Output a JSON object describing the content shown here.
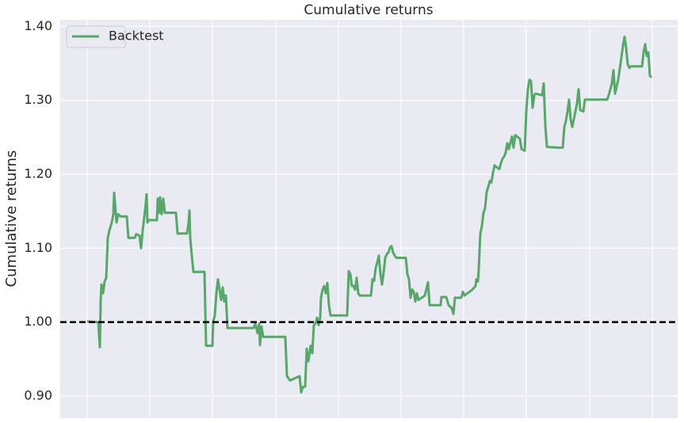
{
  "chart_data": {
    "type": "line",
    "title": "Cumulative returns",
    "y_label": "Cumulative returns",
    "xlim": [
      -34,
      745
    ],
    "xticks": [
      0,
      79,
      158,
      238,
      317,
      396,
      475,
      554,
      634,
      713
    ],
    "ylim": [
      0.87,
      1.409
    ],
    "yticks": [
      {
        "value": 0.9,
        "label": "0.90"
      },
      {
        "value": 1.0,
        "label": "1.00"
      },
      {
        "value": 1.1,
        "label": "1.10"
      },
      {
        "value": 1.2,
        "label": "1.20"
      },
      {
        "value": 1.3,
        "label": "1.30"
      },
      {
        "value": 1.4,
        "label": "1.40"
      }
    ],
    "grid": true,
    "legend": "upper left",
    "reference_line": 1.0,
    "x": [
      0,
      14,
      16,
      17,
      18,
      20,
      22,
      24,
      26,
      28,
      31,
      33,
      34,
      35,
      37,
      39,
      42,
      50,
      52,
      60,
      62,
      66,
      68,
      70,
      73,
      75,
      76,
      78,
      88,
      89,
      91,
      92,
      94,
      96,
      98,
      112,
      114,
      126,
      128,
      129,
      130,
      132,
      134,
      148,
      150,
      158,
      159,
      161,
      163,
      165,
      167,
      169,
      171,
      173,
      175,
      177,
      210,
      212,
      215,
      217,
      218,
      220,
      222,
      250,
      252,
      256,
      268,
      270,
      272,
      275,
      277,
      279,
      282,
      284,
      286,
      288,
      290,
      292,
      294,
      295,
      297,
      299,
      301,
      303,
      305,
      307,
      328,
      330,
      332,
      334,
      336,
      338,
      340,
      342,
      344,
      358,
      360,
      362,
      364,
      366,
      368,
      370,
      372,
      374,
      376,
      378,
      380,
      382,
      384,
      386,
      388,
      390,
      402,
      404,
      406,
      408,
      410,
      412,
      414,
      416,
      418,
      426,
      430,
      432,
      446,
      447,
      453,
      456,
      460,
      462,
      464,
      472,
      474,
      476,
      486,
      490,
      491,
      493,
      494,
      496,
      498,
      500,
      502,
      504,
      506,
      508,
      510,
      512,
      514,
      516,
      520,
      522,
      524,
      526,
      528,
      530,
      532,
      536,
      538,
      540,
      546,
      548,
      552,
      554,
      556,
      558,
      560,
      562,
      564,
      566,
      574,
      576,
      578,
      580,
      594,
      600,
      602,
      604,
      606,
      608,
      610,
      612,
      616,
      618,
      620,
      622,
      626,
      628,
      656,
      658,
      662,
      664,
      666,
      670,
      674,
      676,
      678,
      680,
      682,
      684,
      686,
      700,
      702,
      704,
      706,
      708,
      710,
      712
    ],
    "series": [
      {
        "name": "Backtest",
        "color": "#55a868",
        "values": [
          1.001,
          1.0,
          0.966,
          1.028,
          1.051,
          1.039,
          1.055,
          1.06,
          1.114,
          1.124,
          1.135,
          1.146,
          1.175,
          1.162,
          1.135,
          1.146,
          1.143,
          1.143,
          1.114,
          1.114,
          1.119,
          1.117,
          1.1,
          1.124,
          1.151,
          1.173,
          1.135,
          1.138,
          1.138,
          1.167,
          1.148,
          1.169,
          1.146,
          1.167,
          1.148,
          1.148,
          1.12,
          1.12,
          1.135,
          1.151,
          1.114,
          1.09,
          1.068,
          1.068,
          0.968,
          0.968,
          1.001,
          1.009,
          1.039,
          1.058,
          1.044,
          1.03,
          1.047,
          1.028,
          1.036,
          0.992,
          0.992,
          0.998,
          0.985,
          0.998,
          0.969,
          0.994,
          0.98,
          0.98,
          0.927,
          0.921,
          0.927,
          0.905,
          0.912,
          0.913,
          0.964,
          0.947,
          0.968,
          0.958,
          0.996,
          0.998,
          1.006,
          0.996,
          1.006,
          1.033,
          1.044,
          1.049,
          1.039,
          1.053,
          1.023,
          1.009,
          1.009,
          1.069,
          1.065,
          1.049,
          1.049,
          1.044,
          1.06,
          1.039,
          1.036,
          1.036,
          1.058,
          1.056,
          1.073,
          1.081,
          1.09,
          1.065,
          1.051,
          1.067,
          1.087,
          1.092,
          1.094,
          1.101,
          1.103,
          1.094,
          1.09,
          1.087,
          1.087,
          1.065,
          1.058,
          1.033,
          1.044,
          1.041,
          1.028,
          1.039,
          1.03,
          1.036,
          1.054,
          1.023,
          1.023,
          1.034,
          1.034,
          1.023,
          1.019,
          1.011,
          1.033,
          1.033,
          1.041,
          1.036,
          1.044,
          1.049,
          1.058,
          1.055,
          1.071,
          1.119,
          1.13,
          1.148,
          1.154,
          1.176,
          1.183,
          1.191,
          1.189,
          1.202,
          1.212,
          1.21,
          1.207,
          1.215,
          1.221,
          1.224,
          1.229,
          1.242,
          1.234,
          1.251,
          1.236,
          1.253,
          1.248,
          1.234,
          1.232,
          1.285,
          1.315,
          1.328,
          1.326,
          1.29,
          1.307,
          1.309,
          1.307,
          1.323,
          1.267,
          1.237,
          1.236,
          1.236,
          1.264,
          1.272,
          1.285,
          1.301,
          1.274,
          1.264,
          1.285,
          1.296,
          1.315,
          1.287,
          1.285,
          1.301,
          1.301,
          1.307,
          1.323,
          1.341,
          1.309,
          1.328,
          1.358,
          1.374,
          1.386,
          1.371,
          1.349,
          1.344,
          1.346,
          1.346,
          1.365,
          1.376,
          1.36,
          1.365,
          1.333,
          1.331
        ]
      }
    ]
  }
}
